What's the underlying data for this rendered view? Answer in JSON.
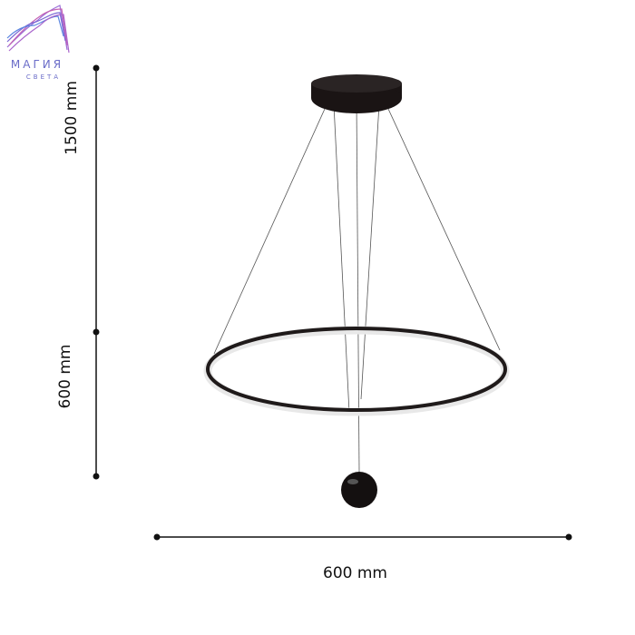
{
  "logo": {
    "line1": "МАГИЯ",
    "line2": "СВЕТА",
    "colors": [
      "#7b5fd0",
      "#c05ab0",
      "#4f8fe0"
    ]
  },
  "dimensions": {
    "total_height": "1500 mm",
    "ring_drop": "600 mm",
    "diameter": "600 mm"
  },
  "colors": {
    "fixture": "#1a1414",
    "dimension_line": "#111111"
  }
}
